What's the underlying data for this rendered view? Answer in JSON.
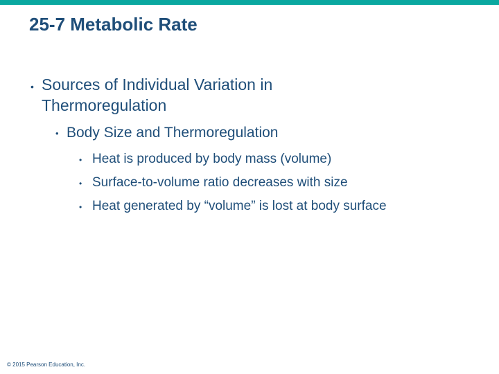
{
  "slide": {
    "title": "25-7 Metabolic Rate",
    "bullet_symbol": "•",
    "level1": "Sources of Individual Variation in Thermoregulation",
    "level2": "Body Size and Thermoregulation",
    "level3": [
      "Heat is produced by body mass (volume)",
      "Surface-to-volume ratio decreases with size",
      "Heat generated by “volume” is lost at body surface"
    ],
    "footer": "© 2015 Pearson Education, Inc."
  },
  "colors": {
    "accent_bar": "#0aa8a0",
    "text": "#1f4e79",
    "background": "#ffffff"
  }
}
